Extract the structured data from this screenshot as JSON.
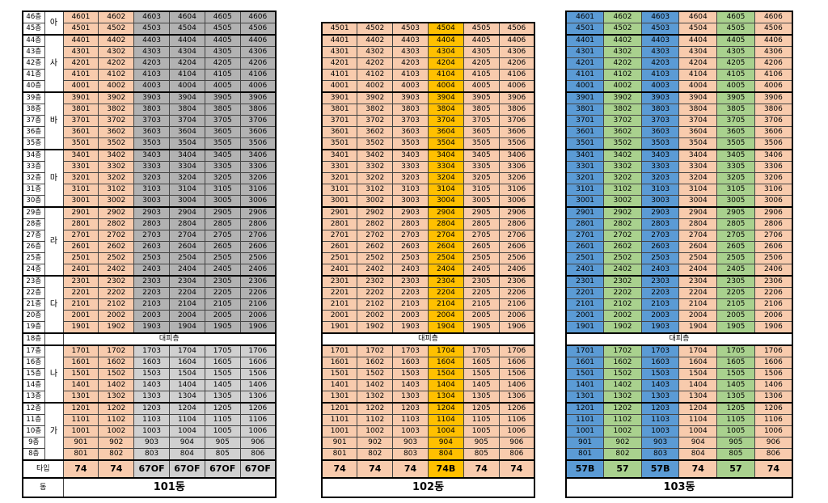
{
  "labels": {
    "type_label": "타입",
    "building_label": "동",
    "refuge": "대피층"
  },
  "floor_labels": [
    "46층",
    "45층",
    "44층",
    "43층",
    "42층",
    "41층",
    "40층",
    "39층",
    "38층",
    "37층",
    "36층",
    "35층",
    "34층",
    "33층",
    "32층",
    "31층",
    "30층",
    "29층",
    "28층",
    "27층",
    "26층",
    "25층",
    "24층",
    "23층",
    "22층",
    "21층",
    "20층",
    "19층",
    "18층",
    "17층",
    "16층",
    "15층",
    "14층",
    "13층",
    "12층",
    "11층",
    "10층",
    "9층",
    "8층"
  ],
  "sections": [
    {
      "label": "아",
      "rows": 2
    },
    {
      "label": "사",
      "rows": 5
    },
    {
      "label": "바",
      "rows": 5
    },
    {
      "label": "마",
      "rows": 5
    },
    {
      "label": "라",
      "rows": 6
    },
    {
      "label": "다",
      "rows": 5
    },
    {
      "label": "",
      "rows": 1
    },
    {
      "label": "나",
      "rows": 5
    },
    {
      "label": "가",
      "rows": 5
    }
  ],
  "buildings": [
    {
      "name": "101동",
      "min_floor": 8,
      "types": [
        "74",
        "74",
        "67OF",
        "67OF",
        "67OF",
        "67OF"
      ],
      "type_colors": [
        "#f8cbad",
        "#f8cbad",
        "#d0d0d0",
        "#d0d0d0",
        "#d0d0d0",
        "#d0d0d0"
      ]
    },
    {
      "name": "102동",
      "min_floor": 8,
      "types": [
        "74",
        "74",
        "74",
        "74B",
        "74",
        "74"
      ],
      "type_colors": [
        "#f8cbad",
        "#f8cbad",
        "#f8cbad",
        "#ffc000",
        "#f8cbad",
        "#f8cbad"
      ]
    },
    {
      "name": "103동",
      "min_floor": 8,
      "types": [
        "57B",
        "57",
        "57B",
        "74",
        "57",
        "74"
      ],
      "type_colors": [
        "#5b9bd5",
        "#a9d18e",
        "#5b9bd5",
        "#f8cbad",
        "#a9d18e",
        "#f8cbad"
      ]
    }
  ],
  "colors": {
    "peach": "#f8cbad",
    "orange": "#ffc000",
    "blue": "#5b9bd5",
    "green": "#a9d18e",
    "gray_dark": "#b2b2b2",
    "gray_light": "#d0d0d0"
  }
}
